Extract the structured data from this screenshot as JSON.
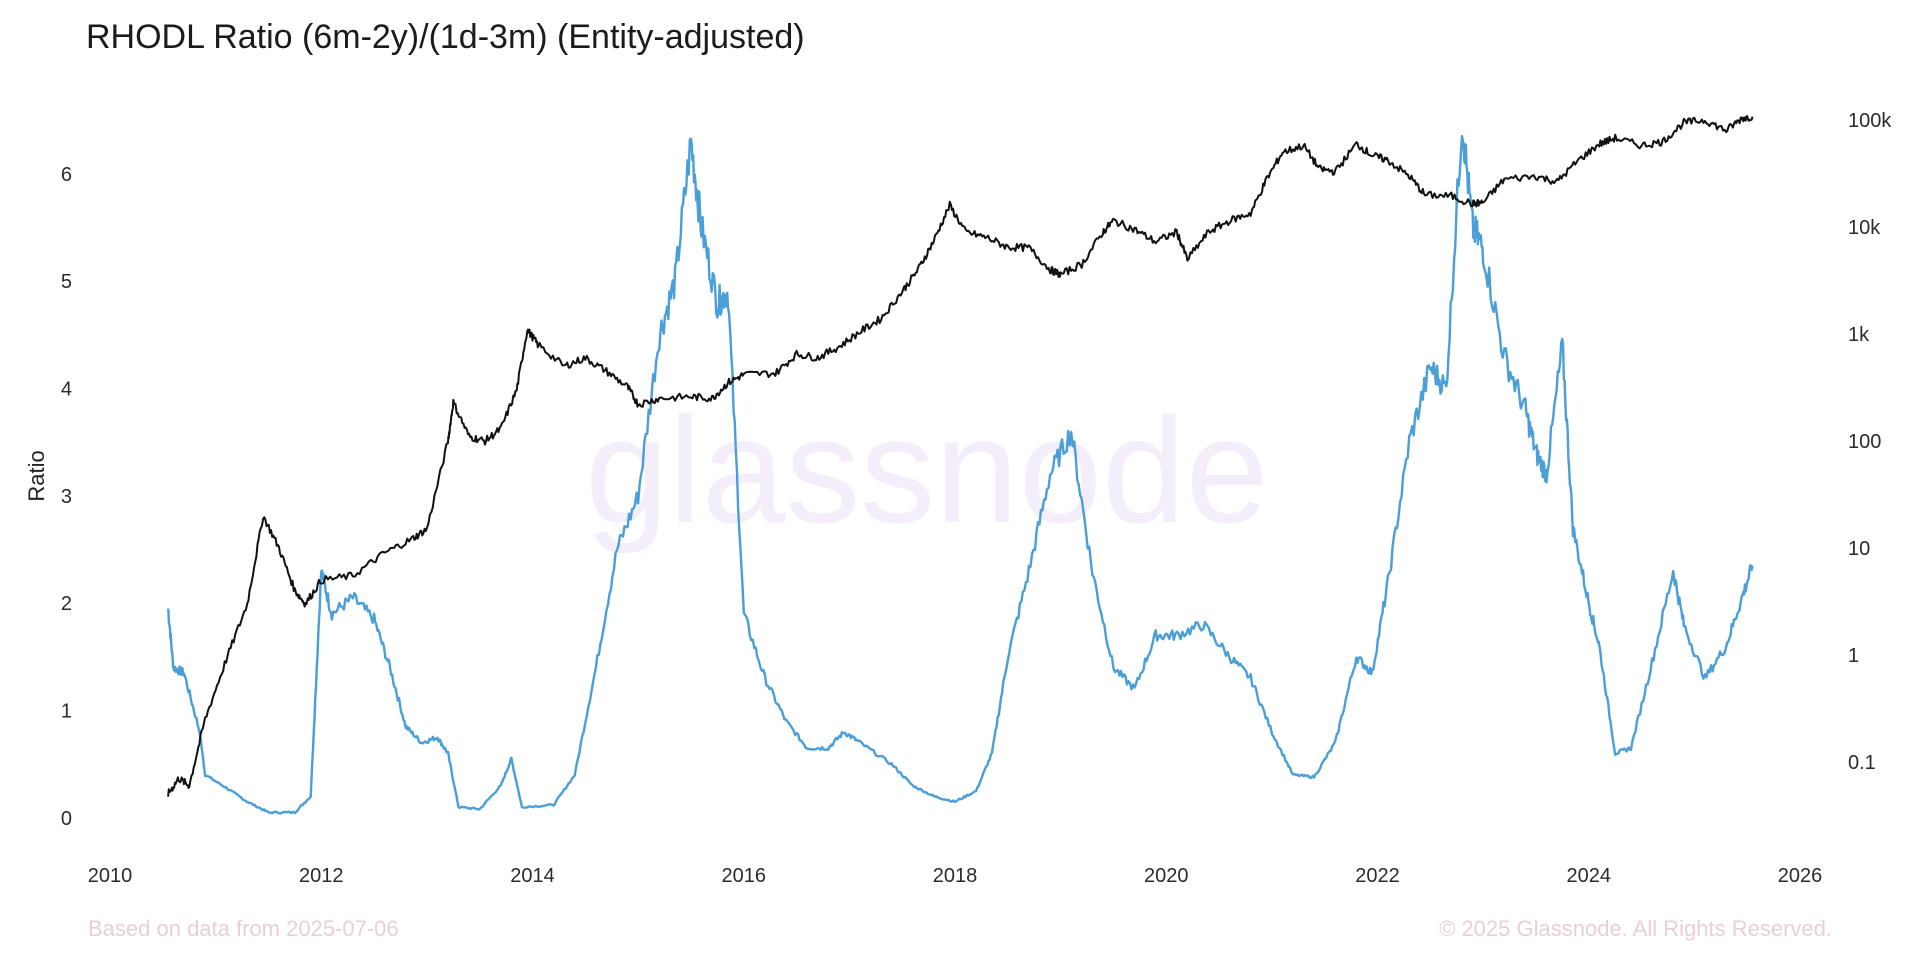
{
  "title": "RHODL Ratio (6m-2y)/(1d-3m) (Entity-adjusted)",
  "watermark": "glassnode",
  "footer_left": "Based on data from 2025-07-06",
  "footer_right": "© 2025 Glassnode. All Rights Reserved.",
  "colors": {
    "ratio": "#4a9fd8",
    "price": "#111111",
    "footer": "#e8cfd6"
  },
  "chart_data": {
    "type": "line",
    "title": "RHODL Ratio (6m-2y)/(1d-3m) (Entity-adjusted)",
    "xlabel": "",
    "ylabel": "Ratio",
    "xlim": [
      2010,
      2026
    ],
    "ylim_left": [
      -0.3,
      6.8
    ],
    "y2_scale": "log",
    "y2lim": [
      0.015,
      200000
    ],
    "grid": false,
    "x_ticks": [
      "2010",
      "2012",
      "2014",
      "2016",
      "2018",
      "2020",
      "2022",
      "2024",
      "2026"
    ],
    "y_ticks_left": [
      "0",
      "1",
      "2",
      "3",
      "4",
      "5",
      "6"
    ],
    "y_ticks_right": [
      "0.1",
      "1",
      "10",
      "100",
      "1k",
      "10k",
      "100k"
    ],
    "series": [
      {
        "axis": "left",
        "color": "#4a9fd8",
        "points": [
          [
            2010.55,
            1.95
          ],
          [
            2010.6,
            1.4
          ],
          [
            2010.7,
            1.35
          ],
          [
            2010.85,
            0.8
          ],
          [
            2010.9,
            0.4
          ],
          [
            2011.1,
            0.28
          ],
          [
            2011.3,
            0.15
          ],
          [
            2011.5,
            0.05
          ],
          [
            2011.75,
            0.05
          ],
          [
            2011.9,
            0.2
          ],
          [
            2012.0,
            2.3
          ],
          [
            2012.1,
            1.9
          ],
          [
            2012.3,
            2.05
          ],
          [
            2012.5,
            1.85
          ],
          [
            2012.65,
            1.4
          ],
          [
            2012.8,
            0.85
          ],
          [
            2012.95,
            0.7
          ],
          [
            2013.1,
            0.75
          ],
          [
            2013.2,
            0.6
          ],
          [
            2013.3,
            0.1
          ],
          [
            2013.5,
            0.08
          ],
          [
            2013.7,
            0.3
          ],
          [
            2013.8,
            0.55
          ],
          [
            2013.9,
            0.1
          ],
          [
            2014.2,
            0.12
          ],
          [
            2014.4,
            0.4
          ],
          [
            2014.6,
            1.4
          ],
          [
            2014.8,
            2.5
          ],
          [
            2015.0,
            3.0
          ],
          [
            2015.2,
            4.5
          ],
          [
            2015.35,
            5.0
          ],
          [
            2015.5,
            6.3
          ],
          [
            2015.6,
            5.5
          ],
          [
            2015.75,
            4.8
          ],
          [
            2015.85,
            4.9
          ],
          [
            2016.0,
            1.9
          ],
          [
            2016.2,
            1.3
          ],
          [
            2016.4,
            0.9
          ],
          [
            2016.6,
            0.65
          ],
          [
            2016.8,
            0.65
          ],
          [
            2016.95,
            0.8
          ],
          [
            2017.1,
            0.7
          ],
          [
            2017.4,
            0.5
          ],
          [
            2017.6,
            0.3
          ],
          [
            2017.8,
            0.2
          ],
          [
            2018.0,
            0.15
          ],
          [
            2018.2,
            0.25
          ],
          [
            2018.35,
            0.6
          ],
          [
            2018.5,
            1.5
          ],
          [
            2018.7,
            2.3
          ],
          [
            2018.9,
            3.2
          ],
          [
            2019.1,
            3.6
          ],
          [
            2019.3,
            2.3
          ],
          [
            2019.5,
            1.4
          ],
          [
            2019.7,
            1.2
          ],
          [
            2019.9,
            1.7
          ],
          [
            2020.1,
            1.7
          ],
          [
            2020.35,
            1.8
          ],
          [
            2020.6,
            1.5
          ],
          [
            2020.8,
            1.3
          ],
          [
            2021.0,
            0.8
          ],
          [
            2021.2,
            0.4
          ],
          [
            2021.4,
            0.38
          ],
          [
            2021.6,
            0.7
          ],
          [
            2021.8,
            1.5
          ],
          [
            2021.95,
            1.35
          ],
          [
            2022.1,
            2.2
          ],
          [
            2022.3,
            3.5
          ],
          [
            2022.5,
            4.2
          ],
          [
            2022.65,
            4.0
          ],
          [
            2022.8,
            6.5
          ],
          [
            2022.9,
            5.5
          ],
          [
            2023.0,
            5.3
          ],
          [
            2023.2,
            4.3
          ],
          [
            2023.4,
            3.8
          ],
          [
            2023.5,
            3.4
          ],
          [
            2023.6,
            3.2
          ],
          [
            2023.75,
            4.4
          ],
          [
            2023.85,
            2.7
          ],
          [
            2024.0,
            2.0
          ],
          [
            2024.1,
            1.6
          ],
          [
            2024.25,
            0.6
          ],
          [
            2024.4,
            0.65
          ],
          [
            2024.6,
            1.45
          ],
          [
            2024.8,
            2.3
          ],
          [
            2024.9,
            1.8
          ],
          [
            2025.1,
            1.3
          ],
          [
            2025.3,
            1.6
          ],
          [
            2025.45,
            2.05
          ],
          [
            2025.55,
            2.35
          ]
        ]
      },
      {
        "axis": "right",
        "color": "#111111",
        "points": [
          [
            2010.55,
            0.05
          ],
          [
            2010.65,
            0.07
          ],
          [
            2010.75,
            0.06
          ],
          [
            2010.9,
            0.25
          ],
          [
            2011.1,
            0.9
          ],
          [
            2011.3,
            3
          ],
          [
            2011.45,
            20
          ],
          [
            2011.6,
            10
          ],
          [
            2011.75,
            4
          ],
          [
            2011.85,
            3
          ],
          [
            2012.0,
            5
          ],
          [
            2012.3,
            5.5
          ],
          [
            2012.6,
            9
          ],
          [
            2012.85,
            12
          ],
          [
            2013.0,
            15
          ],
          [
            2013.2,
            100
          ],
          [
            2013.25,
            230
          ],
          [
            2013.4,
            110
          ],
          [
            2013.55,
            100
          ],
          [
            2013.7,
            130
          ],
          [
            2013.85,
            300
          ],
          [
            2013.95,
            1100
          ],
          [
            2014.05,
            800
          ],
          [
            2014.3,
            500
          ],
          [
            2014.5,
            600
          ],
          [
            2014.7,
            450
          ],
          [
            2014.9,
            320
          ],
          [
            2015.0,
            220
          ],
          [
            2015.2,
            250
          ],
          [
            2015.5,
            260
          ],
          [
            2015.7,
            250
          ],
          [
            2015.85,
            350
          ],
          [
            2016.0,
            420
          ],
          [
            2016.3,
            430
          ],
          [
            2016.5,
            650
          ],
          [
            2016.7,
            600
          ],
          [
            2016.9,
            760
          ],
          [
            2017.1,
            1050
          ],
          [
            2017.3,
            1400
          ],
          [
            2017.5,
            2500
          ],
          [
            2017.65,
            4000
          ],
          [
            2017.8,
            7500
          ],
          [
            2017.95,
            16000
          ],
          [
            2018.1,
            9000
          ],
          [
            2018.3,
            8000
          ],
          [
            2018.5,
            6500
          ],
          [
            2018.7,
            6400
          ],
          [
            2018.9,
            4000
          ],
          [
            2019.0,
            3600
          ],
          [
            2019.2,
            4500
          ],
          [
            2019.4,
            9000
          ],
          [
            2019.5,
            11500
          ],
          [
            2019.7,
            9500
          ],
          [
            2019.9,
            7300
          ],
          [
            2020.1,
            9000
          ],
          [
            2020.2,
            5000
          ],
          [
            2020.4,
            9000
          ],
          [
            2020.6,
            11500
          ],
          [
            2020.8,
            13500
          ],
          [
            2020.95,
            28000
          ],
          [
            2021.1,
            50000
          ],
          [
            2021.3,
            58000
          ],
          [
            2021.45,
            35000
          ],
          [
            2021.6,
            33000
          ],
          [
            2021.8,
            60000
          ],
          [
            2021.95,
            47000
          ],
          [
            2022.1,
            42000
          ],
          [
            2022.3,
            30000
          ],
          [
            2022.45,
            20000
          ],
          [
            2022.7,
            19500
          ],
          [
            2022.9,
            16500
          ],
          [
            2023.0,
            17000
          ],
          [
            2023.2,
            28000
          ],
          [
            2023.5,
            30000
          ],
          [
            2023.7,
            26500
          ],
          [
            2023.9,
            42000
          ],
          [
            2024.1,
            60000
          ],
          [
            2024.25,
            68000
          ],
          [
            2024.5,
            58000
          ],
          [
            2024.7,
            63000
          ],
          [
            2024.9,
            95000
          ],
          [
            2025.1,
            100000
          ],
          [
            2025.3,
            80000
          ],
          [
            2025.45,
            104000
          ],
          [
            2025.55,
            108000
          ]
        ]
      }
    ]
  }
}
